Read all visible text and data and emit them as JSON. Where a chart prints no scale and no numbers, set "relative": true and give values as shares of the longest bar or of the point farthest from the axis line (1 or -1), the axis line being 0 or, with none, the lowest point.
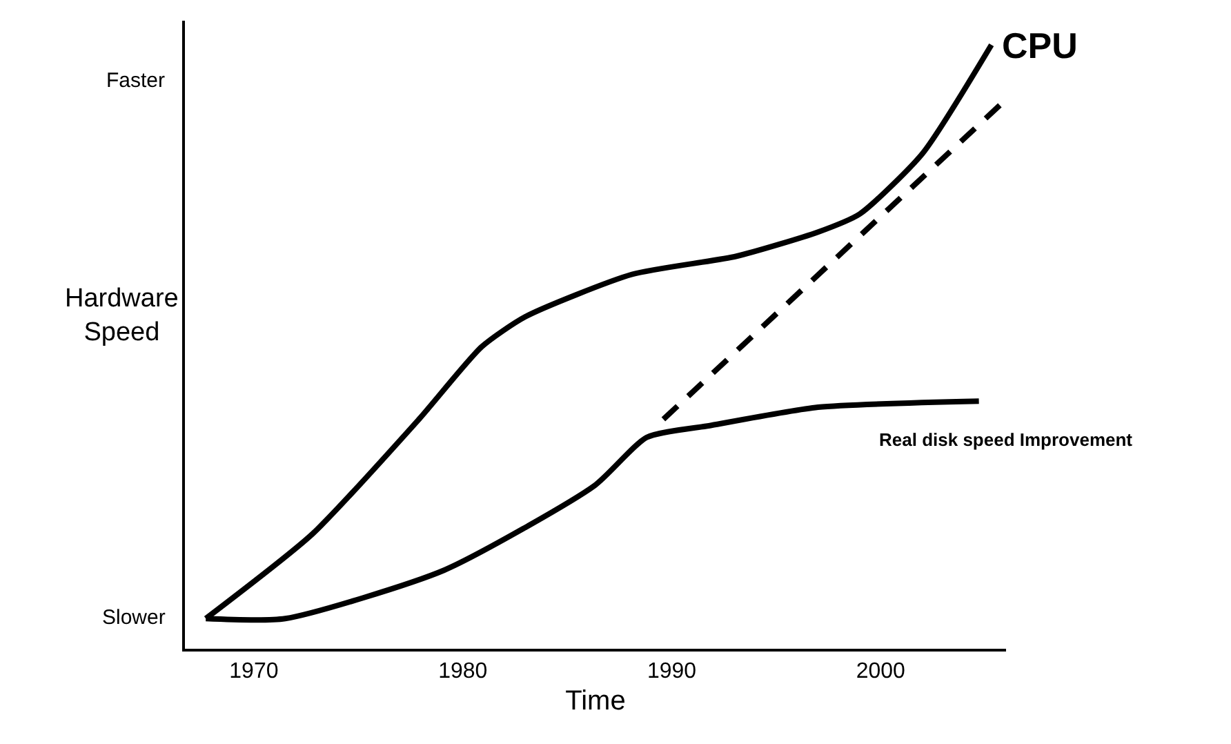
{
  "chart_data": {
    "type": "line",
    "relative": true,
    "xlabel": "Time",
    "ylabel": "Hardware Speed",
    "xlim": [
      1966.7,
      2006
    ],
    "xticks": [
      1970,
      1980,
      1990,
      2000
    ],
    "annotations": [
      "Slower",
      "Faster"
    ],
    "legend": false,
    "marker": "none",
    "series": [
      {
        "name": "CPU",
        "color": "#000000",
        "line_style": "solid",
        "x": [
          1967.7,
          1972.8,
          1977.9,
          1980.9,
          1983.0,
          1988.1,
          1993.1,
          1997.0,
          1999.0,
          2002.0,
          2005.3
        ],
        "values": [
          0.05,
          0.19,
          0.38,
          0.5,
          0.55,
          0.62,
          0.65,
          0.69,
          0.72,
          0.82,
          1
        ]
      },
      {
        "name": "Real disk speed Improvement",
        "color": "#000000",
        "line_style": "solid",
        "x": [
          1967.7,
          1971.5,
          1979.1,
          1986.3,
          1988.8,
          1991.9,
          1997.0,
          2004.7
        ],
        "values": [
          0.05,
          0.05,
          0.13,
          0.27,
          0.35,
          0.37,
          0.4,
          0.41
        ]
      },
      {
        "color": "#000000",
        "line_style": "dashed",
        "x": [
          1989.6,
          2005.7
        ],
        "values": [
          0.38,
          0.9
        ]
      }
    ]
  }
}
